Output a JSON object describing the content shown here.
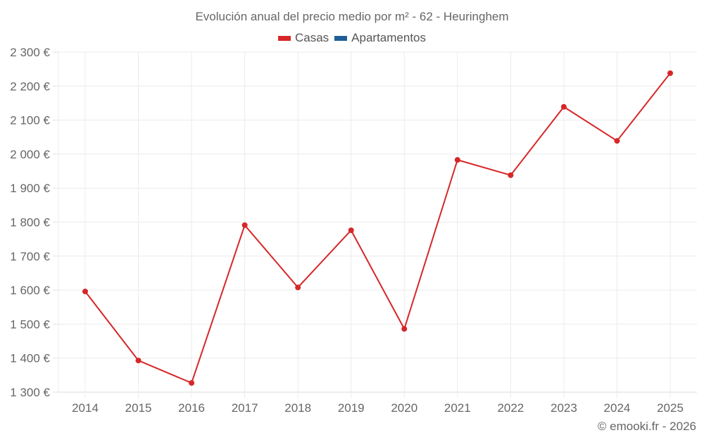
{
  "title": "Evolución anual del precio medio por m² - 62 - Heuringhem",
  "legend": [
    {
      "label": "Casas",
      "color": "#d62728"
    },
    {
      "label": "Apartamentos",
      "color": "#1f5f96"
    }
  ],
  "credit": "© emooki.fr - 2026",
  "chart_data": {
    "type": "line",
    "title": "Evolución anual del precio medio por m² - 62 - Heuringhem",
    "xlabel": "",
    "ylabel": "",
    "categories": [
      "2014",
      "2015",
      "2016",
      "2017",
      "2018",
      "2019",
      "2020",
      "2021",
      "2022",
      "2023",
      "2024",
      "2025"
    ],
    "series": [
      {
        "name": "Casas",
        "color": "#d62728",
        "values": [
          1596,
          1393,
          1327,
          1791,
          1608,
          1776,
          1486,
          1983,
          1938,
          2139,
          2039,
          2238
        ]
      },
      {
        "name": "Apartamentos",
        "color": "#1f5f96",
        "values": []
      }
    ],
    "ylim": [
      1300,
      2300
    ],
    "yticks": [
      1300,
      1400,
      1500,
      1600,
      1700,
      1800,
      1900,
      2000,
      2100,
      2200,
      2300
    ],
    "ytick_labels": [
      "1 300 €",
      "1 400 €",
      "1 500 €",
      "1 600 €",
      "1 700 €",
      "1 800 €",
      "1 900 €",
      "2 000 €",
      "2 100 €",
      "2 200 €",
      "2 300 €"
    ],
    "grid": true,
    "legend_position": "top"
  }
}
